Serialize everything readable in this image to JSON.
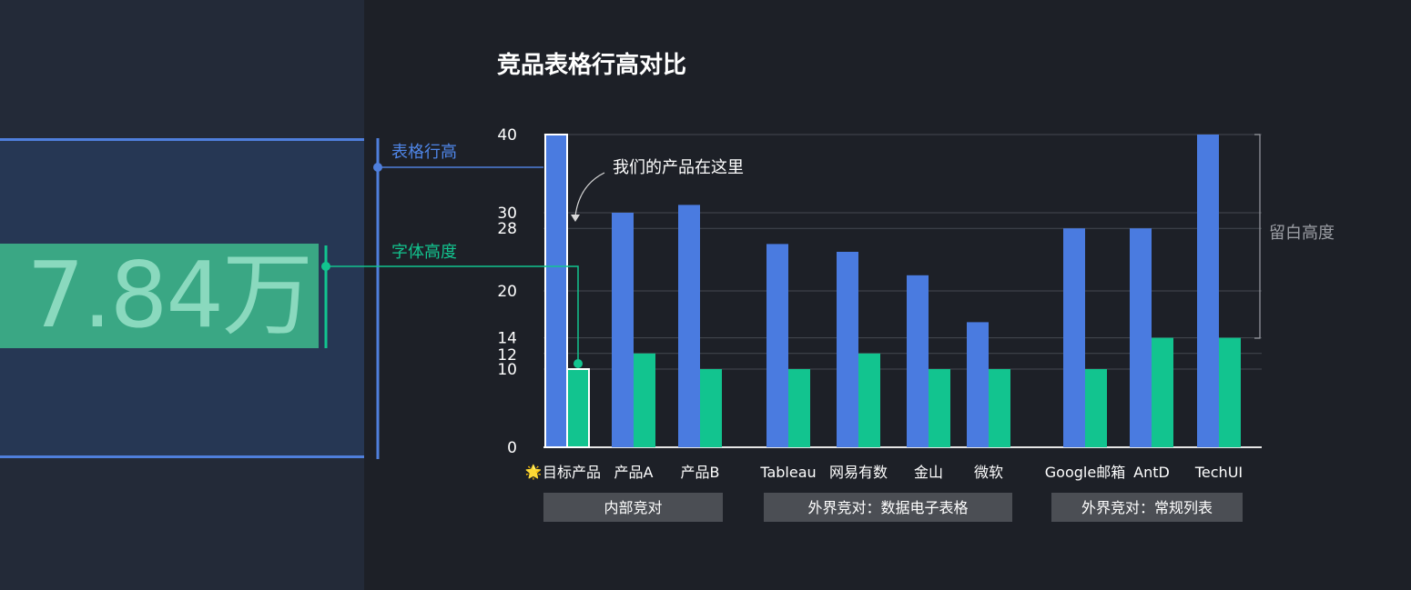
{
  "left_panel": {
    "big_number": "7.84万"
  },
  "annotations": {
    "row_height_label": "表格行高",
    "font_height_label": "字体高度",
    "product_note": "我们的产品在这里",
    "whitespace_label": "留白高度"
  },
  "colors": {
    "row_height": "#4a7be0",
    "font_height": "#12c48f",
    "background": "#1d2027",
    "left_panel": "#232a38",
    "group_box": "#4b4e54"
  },
  "chart_data": {
    "type": "bar",
    "title": "竞品表格行高对比",
    "xlabel": "",
    "ylabel": "",
    "ylim": [
      0,
      40
    ],
    "yticks": [
      0,
      10,
      12,
      14,
      20,
      28,
      30,
      40
    ],
    "grid": true,
    "categories": [
      "目标产品",
      "产品A",
      "产品B",
      "Tableau",
      "网易有数",
      "金山",
      "微软",
      "Google邮箱",
      "AntD",
      "TechUI"
    ],
    "target_marker": "🌟",
    "series": [
      {
        "key": "row_height",
        "values": [
          40,
          30,
          31,
          26,
          25,
          22,
          16,
          28,
          28,
          40
        ]
      },
      {
        "key": "font_height",
        "values": [
          10,
          12,
          10,
          10,
          12,
          10,
          10,
          10,
          14,
          14
        ]
      }
    ],
    "groups": [
      {
        "label": "内部竞对",
        "from": 0,
        "to": 2
      },
      {
        "label": "外界竞对：数据电子表格",
        "from": 3,
        "to": 6
      },
      {
        "label": "外界竞对：常规列表",
        "from": 7,
        "to": 9
      }
    ]
  }
}
